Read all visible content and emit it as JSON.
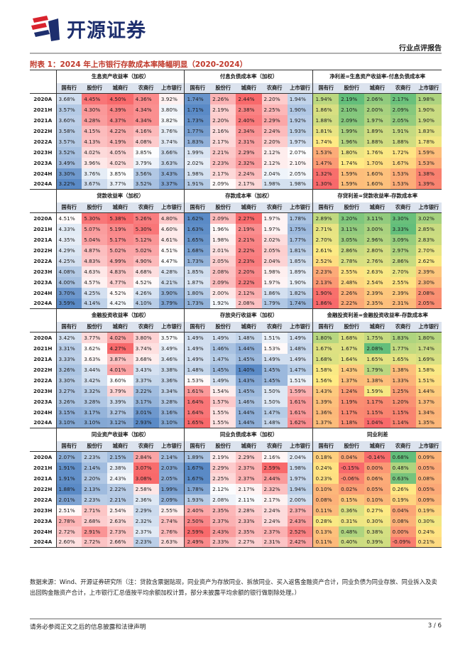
{
  "header": {
    "logo_text": "开源证券",
    "doc_type": "行业点评报告"
  },
  "title": "附表 1：2024 年上市银行存款成本率降幅明显（2020-2024）",
  "col_headers": [
    "国有行",
    "股份行",
    "城商行",
    "农商行",
    "上市银行"
  ],
  "sections": [
    {
      "groups": [
        "生息资产收益率（加权）",
        "付息负债成本率（加权）",
        "净利差=生息资产收益率-付息负债成本率"
      ],
      "rows": [
        {
          "label": "2020A",
          "values": [
            "3.68%",
            "4.45%",
            "4.50%",
            "4.36%",
            "3.92%",
            "1.74%",
            "2.26%",
            "2.44%",
            "2.20%",
            "1.94%",
            "1.94%",
            "2.19%",
            "2.06%",
            "2.17%",
            "1.98%"
          ]
        },
        {
          "label": "2021H",
          "values": [
            "3.57%",
            "4.30%",
            "4.39%",
            "4.34%",
            "3.80%",
            "1.71%",
            "2.19%",
            "2.38%",
            "2.25%",
            "1.90%",
            "1.86%",
            "2.10%",
            "2.00%",
            "2.09%",
            "1.90%"
          ]
        },
        {
          "label": "2021A",
          "values": [
            "3.60%",
            "4.28%",
            "4.37%",
            "4.34%",
            "3.82%",
            "1.73%",
            "2.20%",
            "2.40%",
            "2.29%",
            "1.92%",
            "1.88%",
            "2.09%",
            "1.97%",
            "2.05%",
            "1.90%"
          ]
        },
        {
          "label": "2022H",
          "values": [
            "3.58%",
            "4.15%",
            "4.22%",
            "4.16%",
            "3.76%",
            "1.77%",
            "2.16%",
            "2.34%",
            "2.24%",
            "1.93%",
            "1.81%",
            "1.99%",
            "1.89%",
            "1.91%",
            "1.83%"
          ]
        },
        {
          "label": "2022A",
          "values": [
            "3.57%",
            "4.13%",
            "4.19%",
            "4.08%",
            "3.74%",
            "1.83%",
            "2.17%",
            "2.31%",
            "2.20%",
            "1.97%",
            "1.74%",
            "1.96%",
            "1.88%",
            "1.88%",
            "1.78%"
          ]
        },
        {
          "label": "2023H",
          "values": [
            "3.52%",
            "4.02%",
            "4.05%",
            "3.85%",
            "3.66%",
            "1.99%",
            "2.21%",
            "2.29%",
            "2.12%",
            "2.07%",
            "1.53%",
            "1.80%",
            "1.76%",
            "1.72%",
            "1.59%"
          ]
        },
        {
          "label": "2023A",
          "values": [
            "3.49%",
            "3.96%",
            "4.02%",
            "3.79%",
            "3.63%",
            "2.02%",
            "2.23%",
            "2.32%",
            "2.12%",
            "2.10%",
            "1.47%",
            "1.74%",
            "1.70%",
            "1.67%",
            "1.53%"
          ]
        },
        {
          "label": "2024H",
          "values": [
            "3.30%",
            "3.76%",
            "3.85%",
            "3.56%",
            "3.43%",
            "1.98%",
            "2.17%",
            "2.24%",
            "2.04%",
            "2.05%",
            "1.32%",
            "1.59%",
            "1.60%",
            "1.53%",
            "1.38%"
          ]
        },
        {
          "label": "2024A",
          "values": [
            "3.22%",
            "3.67%",
            "3.77%",
            "3.52%",
            "3.37%",
            "1.91%",
            "2.09%",
            "2.17%",
            "1.98%",
            "1.98%",
            "1.30%",
            "1.59%",
            "1.60%",
            "1.53%",
            "1.39%"
          ]
        }
      ]
    },
    {
      "groups": [
        "贷款收益率（加权）",
        "存款成本率（加权）",
        "存贷利差=贷款收益率-存款成本率"
      ],
      "rows": [
        {
          "label": "2020A",
          "values": [
            "4.51%",
            "5.30%",
            "5.38%",
            "5.26%",
            "4.80%",
            "1.62%",
            "2.09%",
            "2.27%",
            "1.97%",
            "1.78%",
            "2.89%",
            "3.20%",
            "3.11%",
            "3.30%",
            "3.02%"
          ]
        },
        {
          "label": "2021H",
          "values": [
            "4.33%",
            "5.07%",
            "5.19%",
            "5.30%",
            "4.60%",
            "1.63%",
            "1.96%",
            "2.19%",
            "1.97%",
            "1.75%",
            "2.71%",
            "3.11%",
            "3.00%",
            "3.33%",
            "2.85%"
          ]
        },
        {
          "label": "2021A",
          "values": [
            "4.35%",
            "5.04%",
            "5.17%",
            "5.12%",
            "4.61%",
            "1.65%",
            "1.98%",
            "2.21%",
            "2.02%",
            "1.77%",
            "2.70%",
            "3.05%",
            "2.96%",
            "3.09%",
            "2.83%"
          ]
        },
        {
          "label": "2022H",
          "values": [
            "4.29%",
            "4.87%",
            "5.02%",
            "5.02%",
            "4.51%",
            "1.68%",
            "2.01%",
            "2.22%",
            "2.05%",
            "1.81%",
            "2.61%",
            "2.86%",
            "2.80%",
            "2.97%",
            "2.70%"
          ]
        },
        {
          "label": "2022A",
          "values": [
            "4.25%",
            "4.83%",
            "4.99%",
            "4.90%",
            "4.47%",
            "1.73%",
            "2.05%",
            "2.23%",
            "2.04%",
            "1.85%",
            "2.52%",
            "2.78%",
            "2.76%",
            "2.86%",
            "2.62%"
          ]
        },
        {
          "label": "2023H",
          "values": [
            "4.08%",
            "4.63%",
            "4.83%",
            "4.68%",
            "4.28%",
            "1.85%",
            "2.08%",
            "2.20%",
            "1.98%",
            "1.89%",
            "2.23%",
            "2.55%",
            "2.63%",
            "2.70%",
            "2.39%"
          ]
        },
        {
          "label": "2023A",
          "values": [
            "4.00%",
            "4.57%",
            "4.77%",
            "4.52%",
            "4.21%",
            "1.87%",
            "2.09%",
            "2.22%",
            "1.97%",
            "1.90%",
            "2.13%",
            "2.48%",
            "2.54%",
            "2.55%",
            "2.30%"
          ]
        },
        {
          "label": "2024H",
          "values": [
            "3.70%",
            "4.25%",
            "4.52%",
            "4.26%",
            "3.90%",
            "1.80%",
            "2.00%",
            "2.12%",
            "1.86%",
            "1.82%",
            "1.90%",
            "2.26%",
            "2.39%",
            "2.39%",
            "2.08%"
          ]
        },
        {
          "label": "2024A",
          "values": [
            "3.59%",
            "4.14%",
            "4.42%",
            "4.10%",
            "3.79%",
            "1.73%",
            "1.92%",
            "2.08%",
            "1.79%",
            "1.74%",
            "1.86%",
            "2.22%",
            "2.35%",
            "2.31%",
            "2.05%"
          ]
        }
      ]
    },
    {
      "groups": [
        "金融投资收益率（加权）",
        "存放央行收益率（加权）",
        "金融投资利差=金融投资收益率-存款成本率"
      ],
      "rows": [
        {
          "label": "2020A",
          "values": [
            "3.42%",
            "3.77%",
            "4.02%",
            "3.80%",
            "3.57%",
            "1.49%",
            "1.49%",
            "1.48%",
            "1.51%",
            "1.49%",
            "1.80%",
            "1.68%",
            "1.75%",
            "1.83%",
            "1.80%"
          ]
        },
        {
          "label": "2021H",
          "values": [
            "3.31%",
            "3.62%",
            "4.27%",
            "3.74%",
            "3.49%",
            "1.49%",
            "1.46%",
            "1.44%",
            "1.53%",
            "1.48%",
            "1.67%",
            "1.67%",
            "2.08%",
            "1.77%",
            "1.74%"
          ]
        },
        {
          "label": "2021A",
          "values": [
            "3.33%",
            "3.63%",
            "3.87%",
            "3.68%",
            "3.46%",
            "1.49%",
            "1.47%",
            "1.45%",
            "1.49%",
            "1.49%",
            "1.68%",
            "1.64%",
            "1.65%",
            "1.65%",
            "1.69%"
          ]
        },
        {
          "label": "2022H",
          "values": [
            "3.26%",
            "3.44%",
            "4.01%",
            "3.43%",
            "3.38%",
            "1.48%",
            "1.45%",
            "1.40%",
            "1.45%",
            "1.47%",
            "1.58%",
            "1.43%",
            "1.79%",
            "1.38%",
            "1.58%"
          ]
        },
        {
          "label": "2022A",
          "values": [
            "3.30%",
            "3.42%",
            "3.60%",
            "3.37%",
            "3.36%",
            "1.53%",
            "1.49%",
            "1.43%",
            "1.45%",
            "1.51%",
            "1.56%",
            "1.37%",
            "1.38%",
            "1.33%",
            "1.51%"
          ]
        },
        {
          "label": "2023H",
          "values": [
            "3.27%",
            "3.32%",
            "3.79%",
            "3.22%",
            "3.34%",
            "1.61%",
            "1.54%",
            "1.45%",
            "1.50%",
            "1.59%",
            "1.43%",
            "1.24%",
            "1.59%",
            "1.25%",
            "1.44%"
          ]
        },
        {
          "label": "2023A",
          "values": [
            "3.26%",
            "3.28%",
            "3.39%",
            "3.17%",
            "3.28%",
            "1.64%",
            "1.57%",
            "1.46%",
            "1.50%",
            "1.61%",
            "1.39%",
            "1.19%",
            "1.17%",
            "1.20%",
            "1.37%"
          ]
        },
        {
          "label": "2024H",
          "values": [
            "3.15%",
            "3.17%",
            "3.27%",
            "3.01%",
            "3.16%",
            "1.64%",
            "1.55%",
            "1.44%",
            "1.47%",
            "1.61%",
            "1.36%",
            "1.17%",
            "1.15%",
            "1.15%",
            "1.34%"
          ]
        },
        {
          "label": "2024A",
          "values": [
            "3.10%",
            "3.10%",
            "3.12%",
            "2.93%",
            "3.10%",
            "1.65%",
            "1.55%",
            "1.44%",
            "1.48%",
            "1.62%",
            "1.37%",
            "1.18%",
            "1.04%",
            "1.14%",
            "1.35%"
          ]
        }
      ]
    },
    {
      "groups": [
        "同业资产收益率（加权）",
        "同业负债成本率（加权）",
        "同业利差"
      ],
      "rows": [
        {
          "label": "2020A",
          "values": [
            "2.07%",
            "2.23%",
            "2.15%",
            "2.84%",
            "2.14%",
            "1.89%",
            "2.19%",
            "2.29%",
            "2.16%",
            "2.04%",
            "0.18%",
            "0.04%",
            "-0.14%",
            "0.68%",
            "0.09%"
          ]
        },
        {
          "label": "2021H",
          "values": [
            "1.91%",
            "2.14%",
            "2.38%",
            "3.07%",
            "2.03%",
            "1.67%",
            "2.29%",
            "2.37%",
            "2.59%",
            "1.98%",
            "0.24%",
            "-0.15%",
            "0.00%",
            "0.48%",
            "0.05%"
          ]
        },
        {
          "label": "2021A",
          "values": [
            "1.91%",
            "2.20%",
            "2.43%",
            "3.08%",
            "2.05%",
            "1.67%",
            "2.25%",
            "2.37%",
            "2.44%",
            "1.97%",
            "0.23%",
            "-0.06%",
            "0.06%",
            "0.63%",
            "0.08%"
          ]
        },
        {
          "label": "2022H",
          "values": [
            "1.88%",
            "2.13%",
            "2.22%",
            "2.58%",
            "1.99%",
            "1.78%",
            "2.12%",
            "2.17%",
            "2.32%",
            "1.94%",
            "0.10%",
            "0.02%",
            "0.05%",
            "0.26%",
            "0.05%"
          ]
        },
        {
          "label": "2022A",
          "values": [
            "2.01%",
            "2.23%",
            "2.21%",
            "2.36%",
            "2.09%",
            "1.93%",
            "2.08%",
            "2.11%",
            "2.17%",
            "2.00%",
            "0.08%",
            "0.15%",
            "0.10%",
            "0.19%",
            "0.09%"
          ]
        },
        {
          "label": "2023H",
          "values": [
            "2.51%",
            "2.71%",
            "2.54%",
            "2.29%",
            "2.55%",
            "2.40%",
            "2.35%",
            "2.28%",
            "2.24%",
            "2.37%",
            "0.11%",
            "0.36%",
            "0.27%",
            "0.04%",
            "0.19%"
          ]
        },
        {
          "label": "2023A",
          "values": [
            "2.78%",
            "2.68%",
            "2.63%",
            "2.32%",
            "2.74%",
            "2.50%",
            "2.37%",
            "2.33%",
            "2.24%",
            "2.43%",
            "0.28%",
            "0.31%",
            "0.30%",
            "0.08%",
            "0.30%"
          ]
        },
        {
          "label": "2024H",
          "values": [
            "2.72%",
            "2.91%",
            "2.73%",
            "2.37%",
            "2.76%",
            "2.59%",
            "2.43%",
            "2.35%",
            "2.37%",
            "2.52%",
            "0.13%",
            "0.48%",
            "0.38%",
            "0.00%",
            "0.24%"
          ]
        },
        {
          "label": "2024A",
          "values": [
            "2.60%",
            "2.72%",
            "2.66%",
            "2.23%",
            "2.63%",
            "2.49%",
            "2.33%",
            "2.27%",
            "2.31%",
            "2.42%",
            "0.11%",
            "0.40%",
            "0.39%",
            "-0.09%",
            "0.21%"
          ]
        }
      ]
    }
  ],
  "source_note": "数据来源：Wind、开源证券研究所（注：贷款含票据贴现，同业资产为存放同业、拆放同业、买入返售金融资产合计，同业负债为同业存放、同业拆入及卖出回购金融资产合计，上市银行汇总值按平均余额加权计算，部分未披露平均余额的银行做剔除处理。）",
  "footer": {
    "disclaimer": "请务必参阅正文之后的信息披露和法律声明",
    "page": "3 / 6"
  },
  "colors": {
    "brand": "#1e2f6e",
    "accent_red": "#d9232d",
    "title_red": "#c0392b",
    "header_fill": "#dce3ee",
    "scale_high": "#f8696b",
    "scale_mid": "#ffffff",
    "scale_low": "#5a8ac6",
    "scale_green": "#63be7b",
    "scale_yellow": "#ffeb84"
  }
}
